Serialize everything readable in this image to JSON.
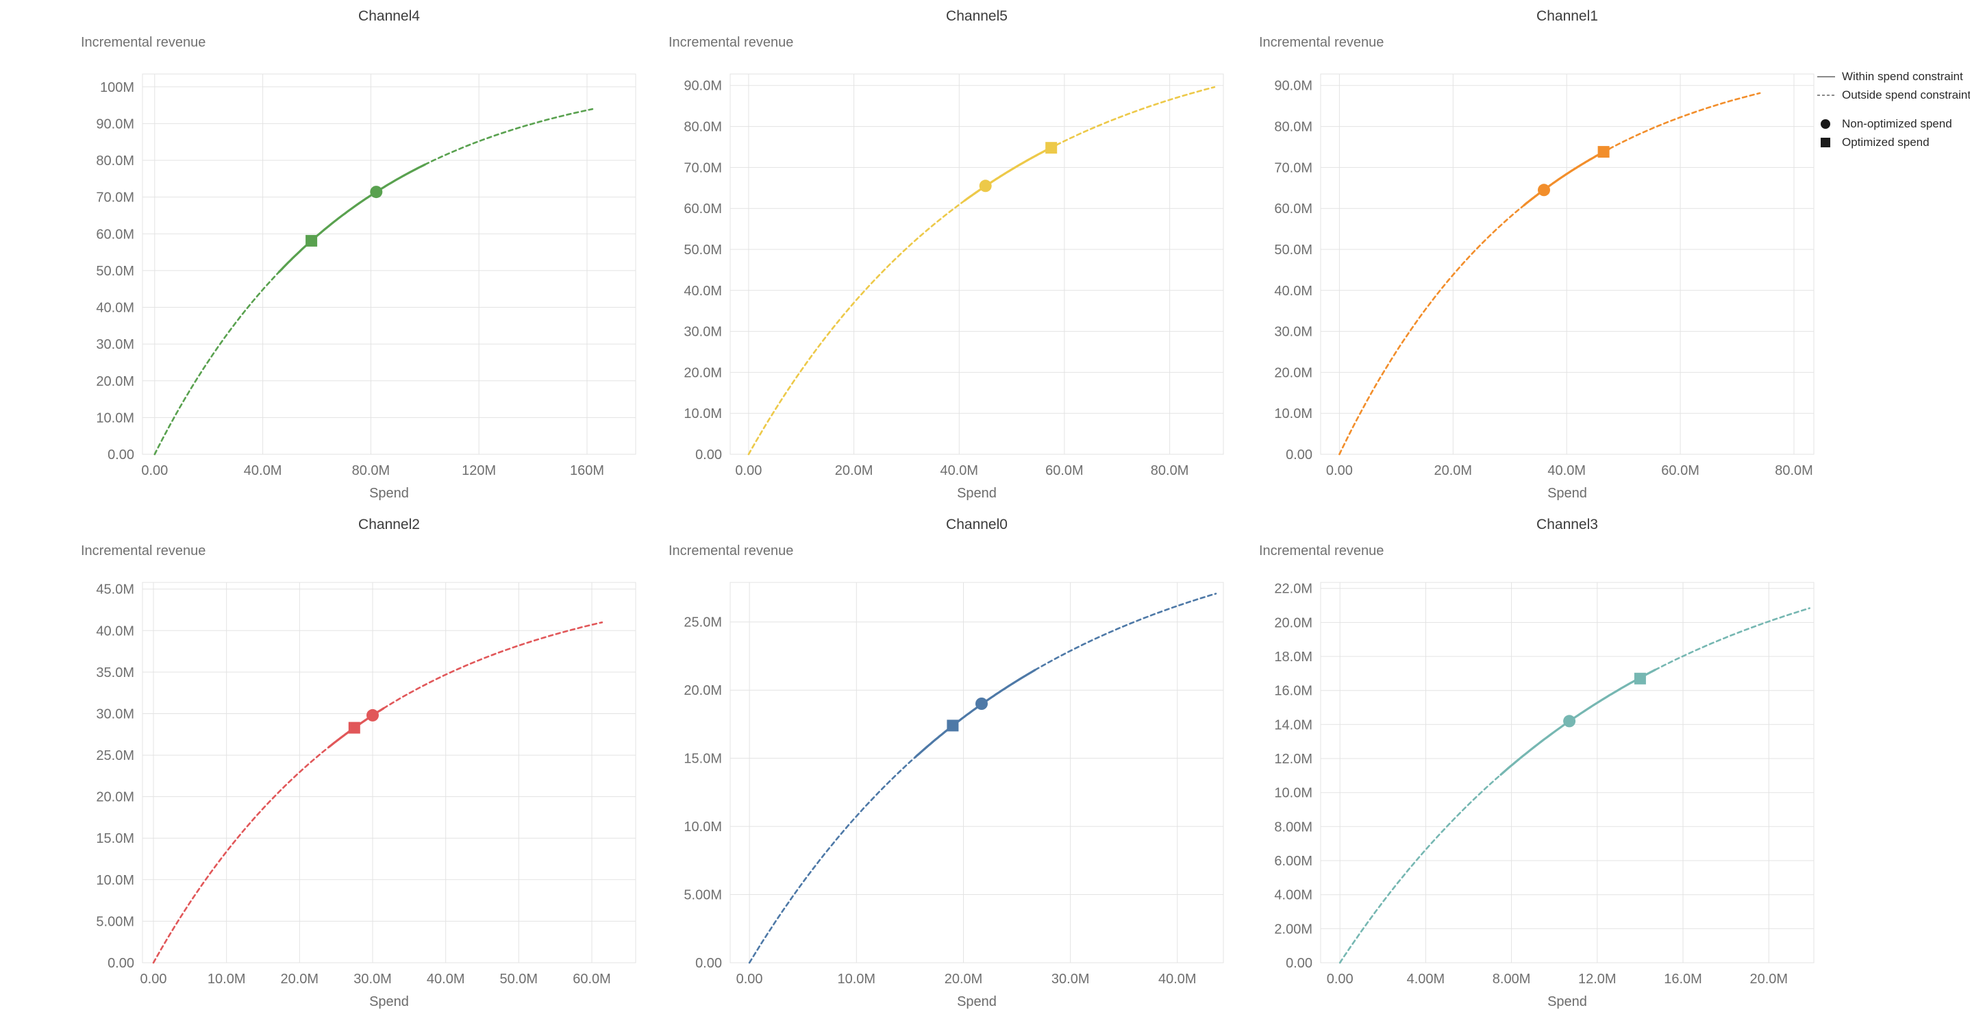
{
  "legend": {
    "line_color": "#8a8a8a",
    "marker_color": "#1a1a1a",
    "items": [
      {
        "label": "Within spend constraint",
        "symbol": "solid-line"
      },
      {
        "label": "Outside spend constraint",
        "symbol": "dashed-line"
      },
      {
        "label": "Non-optimized spend",
        "symbol": "circle"
      },
      {
        "label": "Optimized spend",
        "symbol": "square"
      }
    ]
  },
  "style": {
    "grid_color": "#e3e3e3",
    "plot_border_color": "#e3e3e3",
    "tick_label_color": "#6f6f6f"
  },
  "chart_data": [
    {
      "type": "line",
      "title": "Channel4",
      "xlabel": "Spend",
      "ylabel": "Incremental revenue",
      "color": "#59a14f",
      "x_domain": [
        -4.5,
        178
      ],
      "y_domain": [
        0,
        103.5
      ],
      "x_ticks": [
        {
          "value": 0,
          "label": "0.00"
        },
        {
          "value": 40,
          "label": "40.0M"
        },
        {
          "value": 80,
          "label": "80.0M"
        },
        {
          "value": 120,
          "label": "120M"
        },
        {
          "value": 160,
          "label": "160M"
        }
      ],
      "y_ticks": [
        {
          "value": 0,
          "label": "0.00"
        },
        {
          "value": 10,
          "label": "10.0M"
        },
        {
          "value": 20,
          "label": "20.0M"
        },
        {
          "value": 30,
          "label": "30.0M"
        },
        {
          "value": 40,
          "label": "40.0M"
        },
        {
          "value": 50,
          "label": "50.0M"
        },
        {
          "value": 60,
          "label": "60.0M"
        },
        {
          "value": 70,
          "label": "70.0M"
        },
        {
          "value": 80,
          "label": "80.0M"
        },
        {
          "value": 90,
          "label": "90.0M"
        },
        {
          "value": 100,
          "label": "100M"
        }
      ],
      "curve": {
        "shape": "exponential_saturation",
        "ymax_M": 105,
        "rate_per_M": 0.0139,
        "x_start_M": 0,
        "x_end_M": 162
      },
      "solid_segment_M": [
        46,
        100
      ],
      "markers": {
        "non_optimized_spend": {
          "x_M": 82,
          "y_M": 71.4
        },
        "optimized_spend": {
          "x_M": 58,
          "y_M": 58.1
        }
      }
    },
    {
      "type": "line",
      "title": "Channel5",
      "xlabel": "Spend",
      "ylabel": "Incremental revenue",
      "color": "#edc949",
      "x_domain": [
        -3.5,
        90.2
      ],
      "y_domain": [
        0,
        92.8
      ],
      "x_ticks": [
        {
          "value": 0,
          "label": "0.00"
        },
        {
          "value": 20,
          "label": "20.0M"
        },
        {
          "value": 40,
          "label": "40.0M"
        },
        {
          "value": 60,
          "label": "60.0M"
        },
        {
          "value": 80,
          "label": "80.0M"
        }
      ],
      "y_ticks": [
        {
          "value": 0,
          "label": "0.00"
        },
        {
          "value": 10,
          "label": "10.0M"
        },
        {
          "value": 20,
          "label": "20.0M"
        },
        {
          "value": 30,
          "label": "30.0M"
        },
        {
          "value": 40,
          "label": "40.0M"
        },
        {
          "value": 50,
          "label": "50.0M"
        },
        {
          "value": 60,
          "label": "60.0M"
        },
        {
          "value": 70,
          "label": "70.0M"
        },
        {
          "value": 80,
          "label": "80.0M"
        },
        {
          "value": 90,
          "label": "90.0M"
        }
      ],
      "curve": {
        "shape": "exponential_saturation",
        "ymax_M": 105,
        "rate_per_M": 0.0217,
        "x_start_M": 0,
        "x_end_M": 88.5
      },
      "solid_segment_M": [
        41,
        58.5
      ],
      "markers": {
        "non_optimized_spend": {
          "x_M": 45,
          "y_M": 65.5
        },
        "optimized_spend": {
          "x_M": 57.5,
          "y_M": 74.8
        }
      }
    },
    {
      "type": "line",
      "title": "Channel1",
      "xlabel": "Spend",
      "ylabel": "Incremental revenue",
      "color": "#f28e2b",
      "x_domain": [
        -3.3,
        83.5
      ],
      "y_domain": [
        0,
        92.8
      ],
      "x_ticks": [
        {
          "value": 0,
          "label": "0.00"
        },
        {
          "value": 20,
          "label": "20.0M"
        },
        {
          "value": 40,
          "label": "40.0M"
        },
        {
          "value": 60,
          "label": "60.0M"
        },
        {
          "value": 80,
          "label": "80.0M"
        }
      ],
      "y_ticks": [
        {
          "value": 0,
          "label": "0.00"
        },
        {
          "value": 10,
          "label": "10.0M"
        },
        {
          "value": 20,
          "label": "20.0M"
        },
        {
          "value": 30,
          "label": "30.0M"
        },
        {
          "value": 40,
          "label": "40.0M"
        },
        {
          "value": 50,
          "label": "50.0M"
        },
        {
          "value": 60,
          "label": "60.0M"
        },
        {
          "value": 70,
          "label": "70.0M"
        },
        {
          "value": 80,
          "label": "80.0M"
        },
        {
          "value": 90,
          "label": "90.0M"
        }
      ],
      "curve": {
        "shape": "exponential_saturation",
        "ymax_M": 100,
        "rate_per_M": 0.0288,
        "x_start_M": 0,
        "x_end_M": 74
      },
      "solid_segment_M": [
        32.5,
        47.5
      ],
      "markers": {
        "non_optimized_spend": {
          "x_M": 36,
          "y_M": 64.5
        },
        "optimized_spend": {
          "x_M": 46.5,
          "y_M": 73.8
        }
      }
    },
    {
      "type": "line",
      "title": "Channel2",
      "xlabel": "Spend",
      "ylabel": "Incremental revenue",
      "color": "#e15759",
      "x_domain": [
        -1.5,
        66
      ],
      "y_domain": [
        0,
        45.8
      ],
      "x_ticks": [
        {
          "value": 0,
          "label": "0.00"
        },
        {
          "value": 10,
          "label": "10.0M"
        },
        {
          "value": 20,
          "label": "20.0M"
        },
        {
          "value": 30,
          "label": "30.0M"
        },
        {
          "value": 40,
          "label": "40.0M"
        },
        {
          "value": 50,
          "label": "50.0M"
        },
        {
          "value": 60,
          "label": "60.0M"
        }
      ],
      "y_ticks": [
        {
          "value": 0,
          "label": "0.00"
        },
        {
          "value": 5,
          "label": "5.00M"
        },
        {
          "value": 10,
          "label": "10.0M"
        },
        {
          "value": 15,
          "label": "15.0M"
        },
        {
          "value": 20,
          "label": "20.0M"
        },
        {
          "value": 25,
          "label": "25.0M"
        },
        {
          "value": 30,
          "label": "30.0M"
        },
        {
          "value": 35,
          "label": "35.0M"
        },
        {
          "value": 40,
          "label": "40.0M"
        },
        {
          "value": 45,
          "label": "45.0M"
        }
      ],
      "curve": {
        "shape": "exponential_saturation",
        "ymax_M": 47,
        "rate_per_M": 0.0335,
        "x_start_M": 0,
        "x_end_M": 61.4
      },
      "solid_segment_M": [
        24,
        31.5
      ],
      "markers": {
        "non_optimized_spend": {
          "x_M": 30,
          "y_M": 29.8
        },
        "optimized_spend": {
          "x_M": 27.5,
          "y_M": 28.3
        }
      }
    },
    {
      "type": "line",
      "title": "Channel0",
      "xlabel": "Spend",
      "ylabel": "Incremental revenue",
      "color": "#4e79a7",
      "x_domain": [
        -1.8,
        44.3
      ],
      "y_domain": [
        0,
        27.9
      ],
      "x_ticks": [
        {
          "value": 0,
          "label": "0.00"
        },
        {
          "value": 10,
          "label": "10.0M"
        },
        {
          "value": 20,
          "label": "20.0M"
        },
        {
          "value": 30,
          "label": "30.0M"
        },
        {
          "value": 40,
          "label": "40.0M"
        }
      ],
      "y_ticks": [
        {
          "value": 0,
          "label": "0.00"
        },
        {
          "value": 5,
          "label": "5.00M"
        },
        {
          "value": 10,
          "label": "10.0M"
        },
        {
          "value": 15,
          "label": "15.0M"
        },
        {
          "value": 20,
          "label": "20.0M"
        },
        {
          "value": 25,
          "label": "25.0M"
        }
      ],
      "curve": {
        "shape": "exponential_saturation",
        "ymax_M": 33,
        "rate_per_M": 0.0394,
        "x_start_M": 0,
        "x_end_M": 43.6
      },
      "solid_segment_M": [
        15.5,
        26.7
      ],
      "markers": {
        "non_optimized_spend": {
          "x_M": 21.7,
          "y_M": 19.0
        },
        "optimized_spend": {
          "x_M": 19,
          "y_M": 17.4
        }
      }
    },
    {
      "type": "line",
      "title": "Channel3",
      "xlabel": "Spend",
      "ylabel": "Incremental revenue",
      "color": "#76b7b2",
      "x_domain": [
        -0.9,
        22.1
      ],
      "y_domain": [
        0,
        22.35
      ],
      "x_ticks": [
        {
          "value": 0,
          "label": "0.00"
        },
        {
          "value": 4,
          "label": "4.00M"
        },
        {
          "value": 8,
          "label": "8.00M"
        },
        {
          "value": 12,
          "label": "12.0M"
        },
        {
          "value": 16,
          "label": "16.0M"
        },
        {
          "value": 20,
          "label": "20.0M"
        }
      ],
      "y_ticks": [
        {
          "value": 0,
          "label": "0.00"
        },
        {
          "value": 2,
          "label": "2.00M"
        },
        {
          "value": 4,
          "label": "4.00M"
        },
        {
          "value": 6,
          "label": "6.00M"
        },
        {
          "value": 8,
          "label": "8.00M"
        },
        {
          "value": 10,
          "label": "10.0M"
        },
        {
          "value": 12,
          "label": "12.0M"
        },
        {
          "value": 14,
          "label": "14.0M"
        },
        {
          "value": 16,
          "label": "16.0M"
        },
        {
          "value": 18,
          "label": "18.0M"
        },
        {
          "value": 20,
          "label": "20.0M"
        },
        {
          "value": 22,
          "label": "22.0M"
        }
      ],
      "curve": {
        "shape": "exponential_saturation",
        "ymax_M": 26,
        "rate_per_M": 0.0738,
        "x_start_M": 0,
        "x_end_M": 21.9
      },
      "solid_segment_M": [
        7.5,
        14.7
      ],
      "markers": {
        "non_optimized_spend": {
          "x_M": 10.7,
          "y_M": 14.2
        },
        "optimized_spend": {
          "x_M": 14,
          "y_M": 16.7
        }
      }
    }
  ]
}
